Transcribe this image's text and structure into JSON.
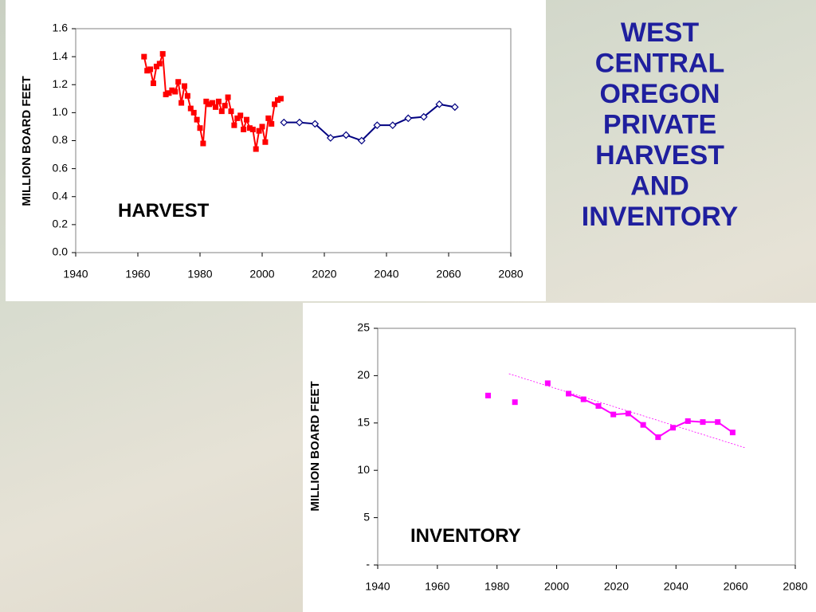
{
  "slide_title": "WEST CENTRAL OREGON PRIVATE HARVEST AND INVENTORY",
  "chart_data": [
    {
      "type": "line",
      "y_label": "MILLION BOARD FEET",
      "annotation": "HARVEST",
      "xlim": [
        1940,
        2080
      ],
      "xticks": [
        1940,
        1960,
        1980,
        2000,
        2020,
        2040,
        2060,
        2080
      ],
      "ylim": [
        0,
        1.6
      ],
      "yticks": [
        {
          "value": 0,
          "label": "0.0"
        },
        0.2,
        0.4,
        0.6,
        0.8,
        {
          "value": 1,
          "label": "1.0"
        },
        1.2,
        1.4,
        1.6
      ],
      "series": [
        {
          "color": "#ff0000",
          "marker": "square",
          "line": true,
          "x": [
            1962,
            1963,
            1964,
            1965,
            1966,
            1967,
            1968,
            1969,
            1970,
            1971,
            1972,
            1973,
            1974,
            1975,
            1976,
            1977,
            1978,
            1979,
            1980,
            1981,
            1982,
            1983,
            1984,
            1985,
            1986,
            1987,
            1988,
            1989,
            1990,
            1991,
            1992,
            1993,
            1994,
            1995,
            1996,
            1997,
            1998,
            1999,
            2000,
            2001,
            2002,
            2003,
            2004,
            2005,
            2006
          ],
          "values": [
            1.4,
            1.3,
            1.31,
            1.21,
            1.33,
            1.35,
            1.42,
            1.13,
            1.14,
            1.16,
            1.15,
            1.22,
            1.07,
            1.19,
            1.12,
            1.03,
            1.0,
            0.95,
            0.89,
            0.78,
            1.08,
            1.06,
            1.07,
            1.04,
            1.08,
            1.01,
            1.05,
            1.11,
            1.01,
            0.91,
            0.96,
            0.98,
            0.88,
            0.95,
            0.89,
            0.88,
            0.74,
            0.87,
            0.9,
            0.79,
            0.96,
            0.92,
            1.06,
            1.09,
            1.1
          ]
        },
        {
          "color": "#000080",
          "marker": "diamond",
          "line": true,
          "x": [
            2007,
            2012,
            2017,
            2022,
            2027,
            2032,
            2037,
            2042,
            2047,
            2052,
            2057,
            2062
          ],
          "values": [
            0.93,
            0.93,
            0.92,
            0.82,
            0.84,
            0.8,
            0.91,
            0.91,
            0.96,
            0.97,
            1.06,
            1.04
          ]
        }
      ]
    },
    {
      "type": "line",
      "y_label": "MILLION BOARD FEET",
      "annotation": "INVENTORY",
      "xlim": [
        1940,
        2080
      ],
      "xticks": [
        1940,
        1960,
        1980,
        2000,
        2020,
        2040,
        2060,
        2080
      ],
      "ylim": [
        0,
        25
      ],
      "yticks": [
        {
          "value": 0,
          "label": "-"
        },
        5,
        10,
        15,
        20,
        25
      ],
      "series": [
        {
          "color": "#ff00ff",
          "marker": "square",
          "line": false,
          "x": [
            1977,
            1986,
            1997
          ],
          "values": [
            17.9,
            17.2,
            19.2
          ]
        },
        {
          "color": "#ff00ff",
          "marker": "square",
          "line": true,
          "x": [
            2004,
            2009,
            2014,
            2019,
            2024,
            2029,
            2034,
            2039,
            2044,
            2049,
            2054,
            2059
          ],
          "values": [
            18.1,
            17.5,
            16.8,
            15.9,
            16.0,
            14.8,
            13.5,
            14.5,
            15.2,
            15.1,
            15.1,
            14.0
          ]
        },
        {
          "color": "#ff00ff",
          "marker": "none",
          "line": true,
          "dash": true,
          "x": [
            1984,
            2063
          ],
          "values": [
            20.2,
            12.4
          ]
        }
      ]
    }
  ]
}
